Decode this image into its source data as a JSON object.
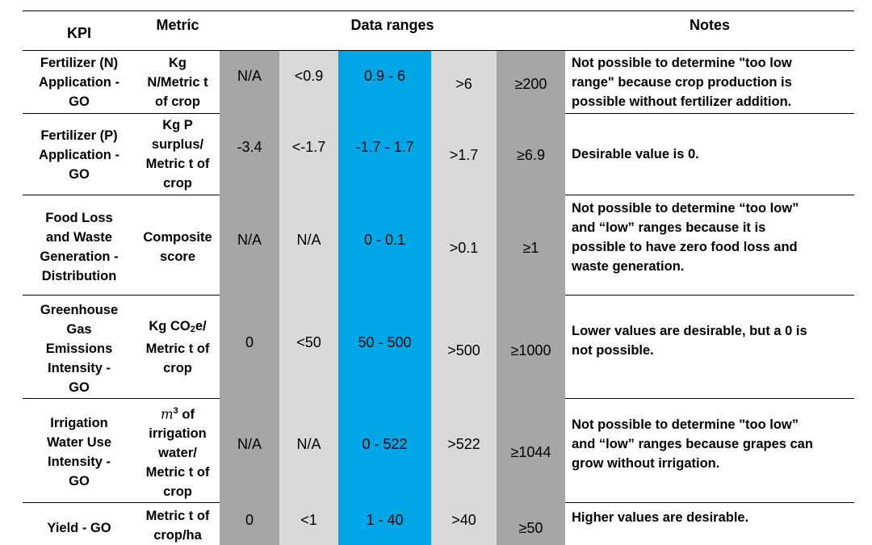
{
  "headers": {
    "kpi": "KPI",
    "metric": "Metric",
    "ranges": "Data ranges",
    "notes": "Notes"
  },
  "colors": {
    "dark_gray": "#a6a6a6",
    "light_gray": "#d9d9d9",
    "blue": "#00a6e6"
  },
  "rows": [
    {
      "kpi": "Fertilizer (N)\nApplication -\nGO",
      "metric": "Kg\nN/Metric t\nof crop",
      "ranges": [
        "N/A",
        "<0.9",
        "0.9 - 6",
        ">6",
        "≥200"
      ],
      "note": "Not possible to determine \"too low\nrange\" because crop production is\npossible without fertilizer addition."
    },
    {
      "kpi": "Fertilizer (P)\nApplication -\nGO",
      "metric": "Kg P\nsurplus/\nMetric t of\ncrop",
      "ranges": [
        "-3.4",
        "<-1.7",
        "-1.7 - 1.7",
        ">1.7",
        "≥6.9"
      ],
      "note": "Desirable value is 0."
    },
    {
      "kpi": "Food Loss\nand Waste\nGeneration -\nDistribution",
      "metric": "Composite\nscore",
      "ranges": [
        "N/A",
        "N/A",
        "0 - 0.1",
        ">0.1",
        "≥1"
      ],
      "note": "Not possible to determine “too low”\nand “low” ranges because it is\npossible to have zero food loss and\nwaste generation."
    },
    {
      "kpi": "Greenhouse\nGas\nEmissions\nIntensity -\nGO",
      "metric_pre": "Kg CO",
      "metric_sub": "2",
      "metric_post": "e/\nMetric t of\ncrop",
      "ranges": [
        "0",
        "<50",
        "50 - 500",
        ">500",
        "≥1000"
      ],
      "note": "Lower values are desirable, but a 0 is\nnot possible."
    },
    {
      "kpi": "Irrigation\nWater Use\nIntensity -\nGO",
      "metric_base": "m",
      "metric_sup": "3",
      "metric_post": " of\nirrigation\nwater/\nMetric t of\ncrop",
      "ranges": [
        "N/A",
        "N/A",
        "0 - 522",
        ">522",
        "≥1044"
      ],
      "note": "Not possible to determine \"too low”\nand “low” ranges because grapes can\ngrow without irrigation."
    },
    {
      "kpi": "Yield - GO",
      "metric": "Metric t of\ncrop/ha",
      "ranges": [
        "0",
        "<1",
        "1 - 40",
        ">40",
        "≥50"
      ],
      "note": "Higher values are desirable."
    }
  ]
}
